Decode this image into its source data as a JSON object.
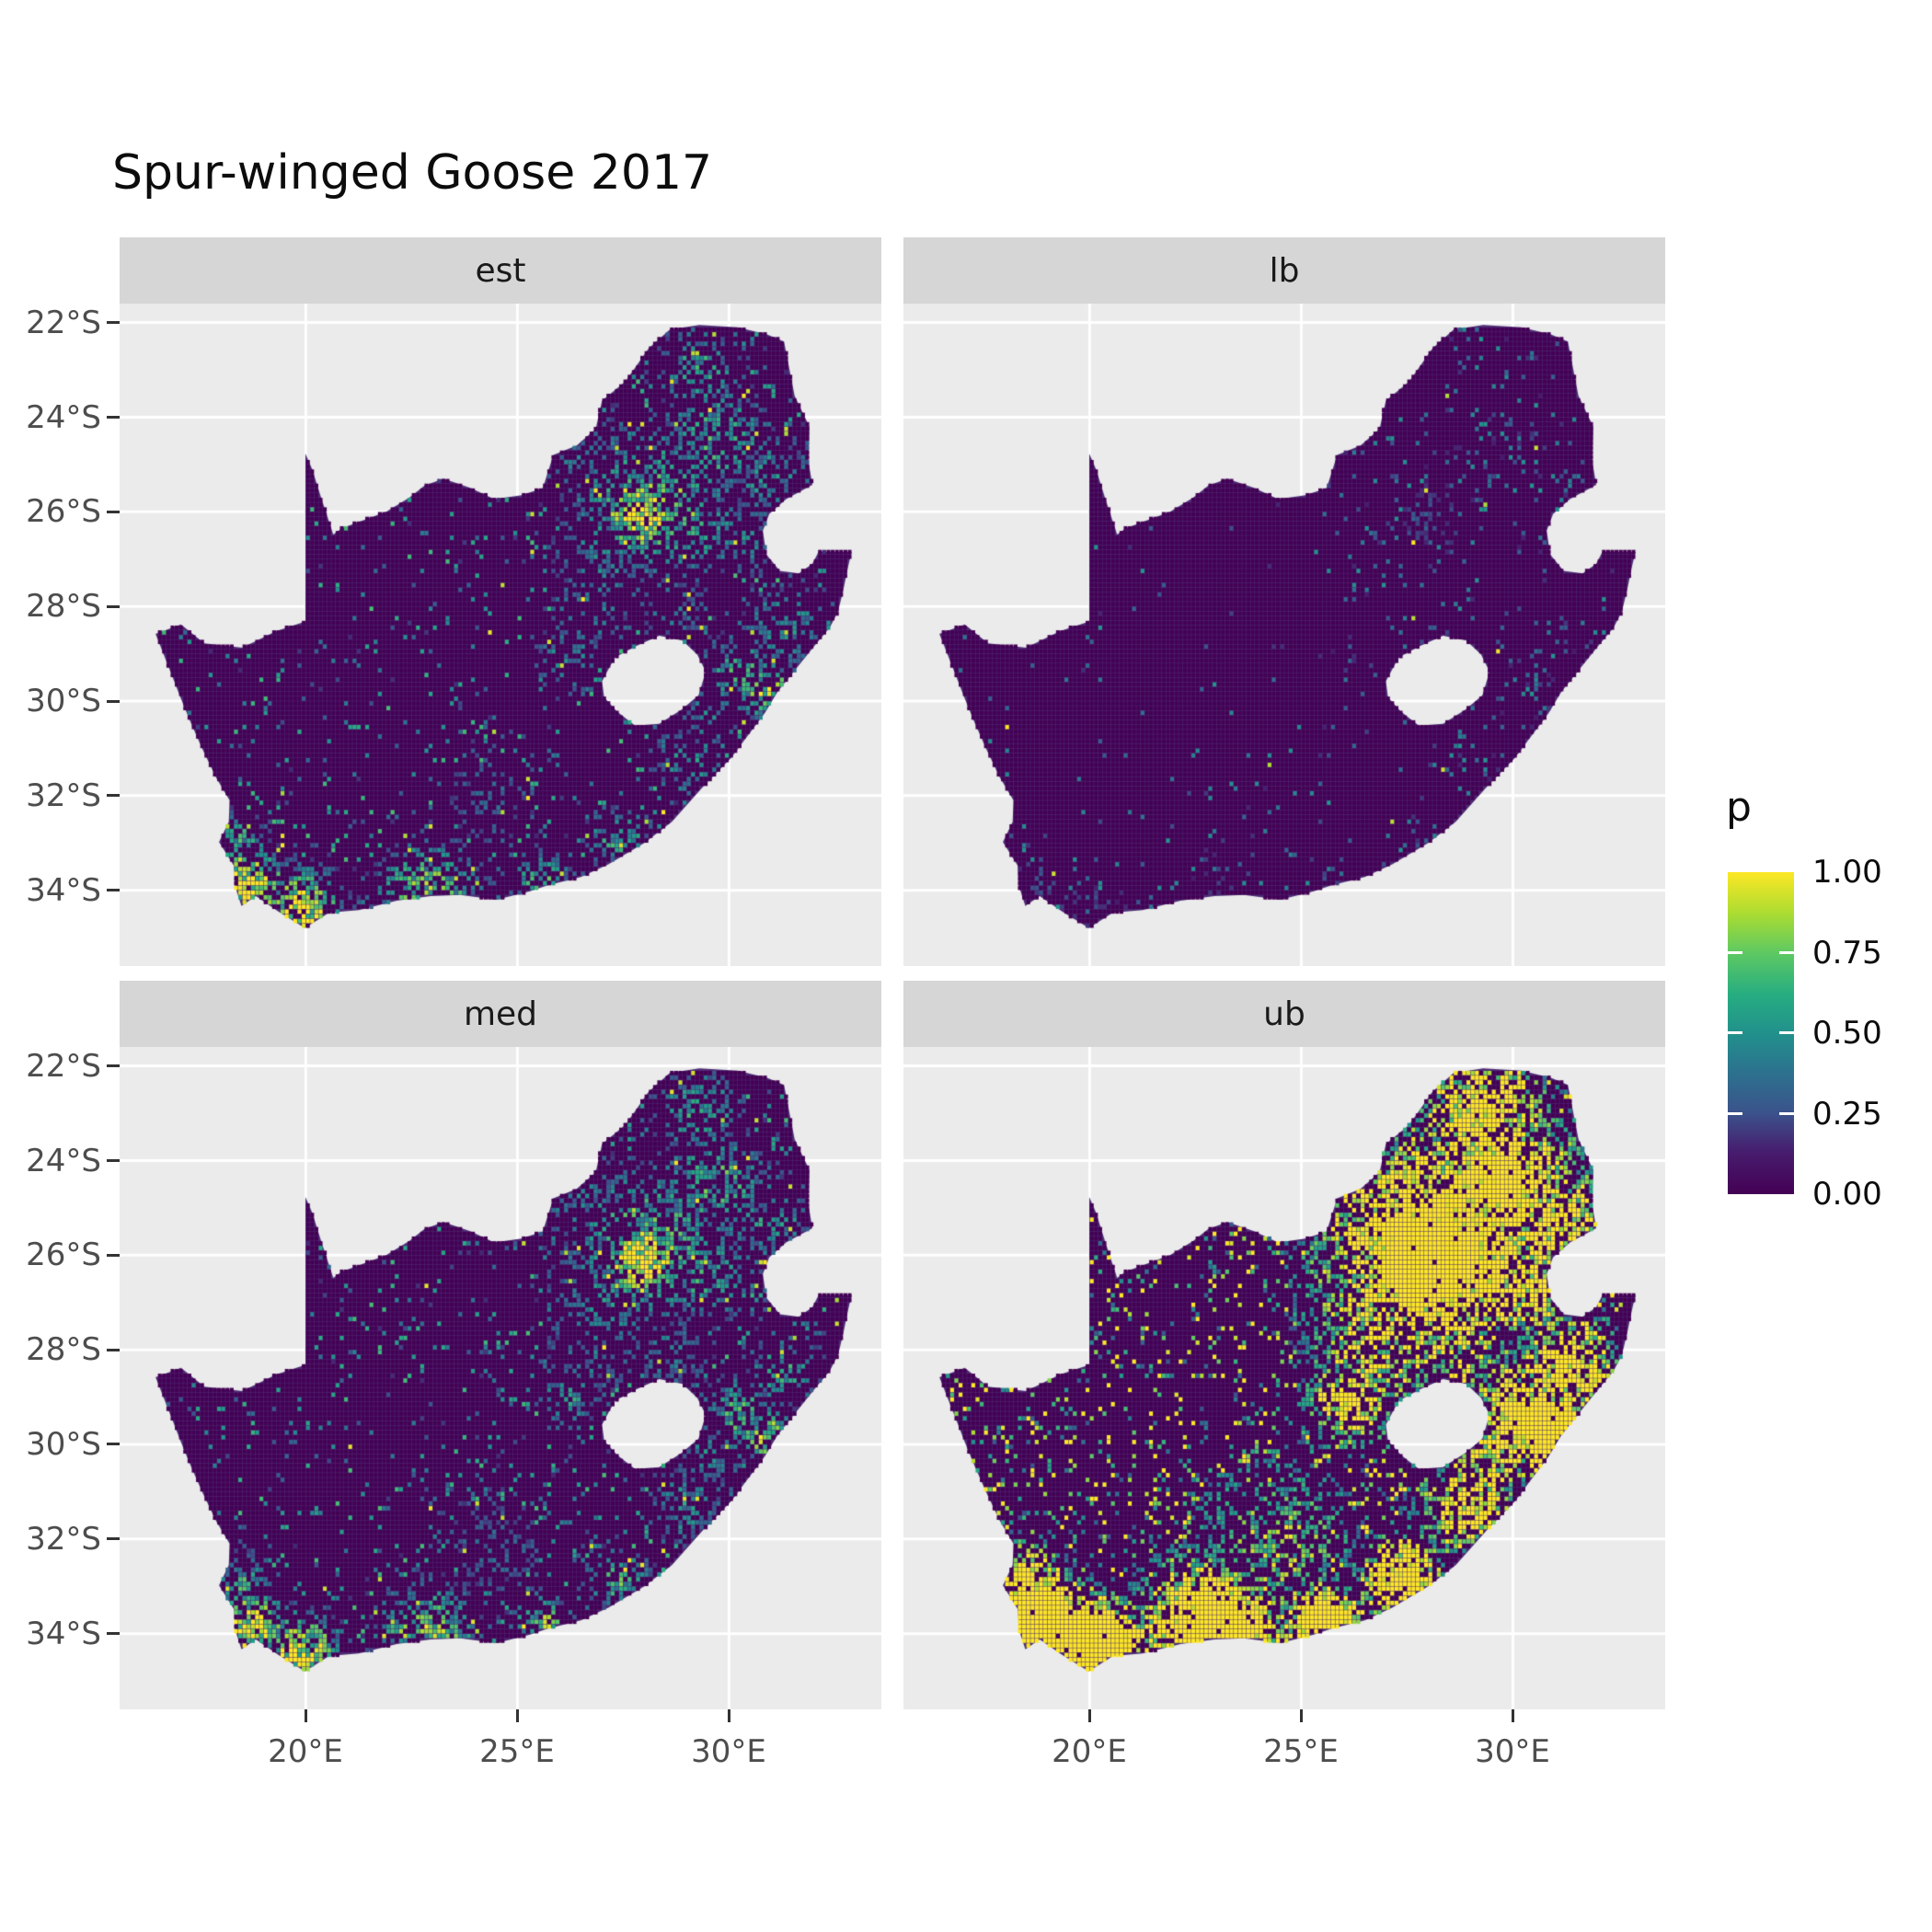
{
  "title": "Spur-winged Goose 2017",
  "axes": {
    "lat_labels": [
      "22°S",
      "24°S",
      "26°S",
      "28°S",
      "30°S",
      "32°S",
      "34°S"
    ],
    "lon_labels": [
      "20°E",
      "25°E",
      "30°E"
    ]
  },
  "legend": {
    "title": "p",
    "labels": [
      "1.00",
      "0.75",
      "0.50",
      "0.25",
      "0.00"
    ]
  },
  "colors": {
    "panel_background": "#EBEBEB",
    "grid_line": "#FFFFFF",
    "strip_background": "#D6D6D6",
    "axis_text": "#4D4D4D",
    "tick_mark": "#333333",
    "raster_base": "#440154",
    "raster_grout": "#4E2D76",
    "viridis_low": "#440154",
    "viridis_high": "#FDE725"
  },
  "chart_data": {
    "type": "heatmap",
    "subtype": "faceted raster probability map (ggplot2 style, 2x2 facets)",
    "title": "Spur-winged Goose 2017",
    "region": "South Africa (with Lesotho hole and Eswatini notch)",
    "value_variable": "p",
    "value_range": [
      0,
      1
    ],
    "lon_range_deg_east": [
      15.6,
      33.6
    ],
    "lat_range_deg_south": [
      21.6,
      35.6
    ],
    "x_ticks_deg_east": [
      20,
      25,
      30
    ],
    "y_ticks_deg_south": [
      22,
      24,
      26,
      28,
      30,
      32,
      34
    ],
    "grid": true,
    "legend_position": "right",
    "cell_size_deg": 0.1,
    "facets": [
      {
        "label": "est",
        "description": "estimated reporting probability; hotspots in Gauteng/Highveld, KZN and south coast",
        "amp": 1.0,
        "spread": 1.0,
        "vmult": 1.0,
        "scatter": 0.045,
        "seed": 11
      },
      {
        "label": "lb",
        "description": "lower bound; map almost entirely near p=0 with sparse teal/yellow specks",
        "amp": 0.3,
        "spread": 0.85,
        "vmult": 0.75,
        "scatter": 0.013,
        "seed": 23
      },
      {
        "label": "med",
        "description": "median estimate; pattern similar to est",
        "amp": 1.05,
        "spread": 1.0,
        "vmult": 1.0,
        "scatter": 0.055,
        "seed": 37
      },
      {
        "label": "ub",
        "description": "upper bound; extensive yellow (p near 1) in Gauteng, north-east and south coast",
        "amp": 1.75,
        "spread": 1.35,
        "vmult": 1.65,
        "scatter": 0.13,
        "seed": 51
      }
    ],
    "viridis_stops": [
      [
        0.0,
        "#440154"
      ],
      [
        0.13,
        "#471c6e"
      ],
      [
        0.25,
        "#3b528b"
      ],
      [
        0.38,
        "#2c728e"
      ],
      [
        0.5,
        "#21918c"
      ],
      [
        0.62,
        "#27ad81"
      ],
      [
        0.75,
        "#5ec962"
      ],
      [
        0.87,
        "#aadc32"
      ],
      [
        1.0,
        "#fde725"
      ]
    ],
    "hotspots": [
      [
        27.95,
        -26.1,
        0.55,
        1.0
      ],
      [
        28.15,
        -25.8,
        1.25,
        0.55
      ],
      [
        29.35,
        -26.35,
        0.8,
        0.45
      ],
      [
        29.7,
        -24.5,
        0.9,
        0.5
      ],
      [
        29.3,
        -23.0,
        0.7,
        0.45
      ],
      [
        26.5,
        -24.9,
        0.7,
        0.3
      ],
      [
        30.9,
        -29.8,
        0.45,
        0.7
      ],
      [
        30.25,
        -29.4,
        0.6,
        0.5
      ],
      [
        31.3,
        -28.4,
        0.6,
        0.45
      ],
      [
        27.4,
        -32.9,
        0.5,
        0.5
      ],
      [
        25.55,
        -33.8,
        0.45,
        0.6
      ],
      [
        22.9,
        -34.1,
        0.8,
        0.65
      ],
      [
        19.9,
        -34.45,
        0.6,
        0.9
      ],
      [
        18.7,
        -33.9,
        0.55,
        0.9
      ],
      [
        18.45,
        -33.0,
        0.45,
        0.5
      ],
      [
        26.8,
        -28.0,
        0.8,
        0.3
      ],
      [
        27.1,
        -26.95,
        0.9,
        0.35
      ],
      [
        26.2,
        -29.1,
        0.5,
        0.4
      ],
      [
        24.4,
        -32.1,
        1.0,
        0.22
      ],
      [
        28.6,
        -28.1,
        0.6,
        0.3
      ],
      [
        29.0,
        -31.3,
        0.6,
        0.4
      ],
      [
        29.55,
        -30.3,
        0.5,
        0.35
      ],
      [
        31.0,
        -25.3,
        0.7,
        0.4
      ],
      [
        30.5,
        -26.7,
        0.5,
        0.4
      ]
    ],
    "boundary_south_africa": [
      [
        16.45,
        -28.58
      ],
      [
        16.78,
        -29.33
      ],
      [
        17.05,
        -29.95
      ],
      [
        17.28,
        -30.45
      ],
      [
        17.55,
        -31.0
      ],
      [
        17.88,
        -31.62
      ],
      [
        18.2,
        -32.1
      ],
      [
        18.18,
        -32.55
      ],
      [
        17.95,
        -32.98
      ],
      [
        18.3,
        -33.48
      ],
      [
        18.33,
        -33.92
      ],
      [
        18.48,
        -34.33
      ],
      [
        18.82,
        -34.12
      ],
      [
        19.35,
        -34.45
      ],
      [
        19.98,
        -34.8
      ],
      [
        20.55,
        -34.47
      ],
      [
        21.25,
        -34.42
      ],
      [
        22.15,
        -34.22
      ],
      [
        22.95,
        -34.12
      ],
      [
        23.65,
        -34.1
      ],
      [
        24.5,
        -34.2
      ],
      [
        25.3,
        -34.02
      ],
      [
        25.7,
        -33.9
      ],
      [
        26.5,
        -33.72
      ],
      [
        27.15,
        -33.45
      ],
      [
        28.0,
        -33.0
      ],
      [
        28.65,
        -32.55
      ],
      [
        29.4,
        -31.8
      ],
      [
        30.05,
        -31.2
      ],
      [
        30.85,
        -30.25
      ],
      [
        31.15,
        -29.8
      ],
      [
        31.6,
        -29.3
      ],
      [
        32.05,
        -28.8
      ],
      [
        32.38,
        -28.45
      ],
      [
        32.58,
        -28.1
      ],
      [
        32.7,
        -27.65
      ],
      [
        32.83,
        -27.1
      ],
      [
        32.9,
        -26.85
      ],
      [
        32.12,
        -26.84
      ],
      [
        31.97,
        -27.1
      ],
      [
        31.65,
        -27.3
      ],
      [
        31.2,
        -27.25
      ],
      [
        30.88,
        -26.9
      ],
      [
        30.8,
        -26.4
      ],
      [
        30.95,
        -26.05
      ],
      [
        31.35,
        -25.73
      ],
      [
        31.97,
        -25.43
      ],
      [
        31.87,
        -24.9
      ],
      [
        31.9,
        -24.2
      ],
      [
        31.55,
        -23.55
      ],
      [
        31.3,
        -22.4
      ],
      [
        30.9,
        -22.25
      ],
      [
        30.2,
        -22.1
      ],
      [
        29.3,
        -22.05
      ],
      [
        28.6,
        -22.15
      ],
      [
        28.1,
        -22.55
      ],
      [
        27.55,
        -23.25
      ],
      [
        27.0,
        -23.65
      ],
      [
        26.85,
        -24.25
      ],
      [
        26.4,
        -24.6
      ],
      [
        25.85,
        -24.8
      ],
      [
        25.6,
        -25.5
      ],
      [
        25.1,
        -25.65
      ],
      [
        24.45,
        -25.73
      ],
      [
        23.9,
        -25.5
      ],
      [
        23.25,
        -25.3
      ],
      [
        22.8,
        -25.45
      ],
      [
        22.45,
        -25.7
      ],
      [
        21.9,
        -26.0
      ],
      [
        21.3,
        -26.2
      ],
      [
        20.85,
        -26.35
      ],
      [
        20.65,
        -26.48
      ],
      [
        20.38,
        -25.75
      ],
      [
        20.15,
        -25.1
      ],
      [
        19.99,
        -24.77
      ],
      [
        19.99,
        -28.32
      ],
      [
        19.3,
        -28.52
      ],
      [
        18.5,
        -28.87
      ],
      [
        17.6,
        -28.78
      ],
      [
        17.05,
        -28.38
      ],
      [
        16.45,
        -28.58
      ]
    ],
    "hole_lesotho": [
      [
        27.0,
        -29.58
      ],
      [
        27.3,
        -29.08
      ],
      [
        27.78,
        -28.85
      ],
      [
        28.35,
        -28.62
      ],
      [
        28.9,
        -28.72
      ],
      [
        29.25,
        -29.02
      ],
      [
        29.45,
        -29.38
      ],
      [
        29.28,
        -29.88
      ],
      [
        28.88,
        -30.18
      ],
      [
        28.35,
        -30.48
      ],
      [
        27.78,
        -30.52
      ],
      [
        27.35,
        -30.22
      ],
      [
        27.05,
        -29.92
      ]
    ]
  }
}
